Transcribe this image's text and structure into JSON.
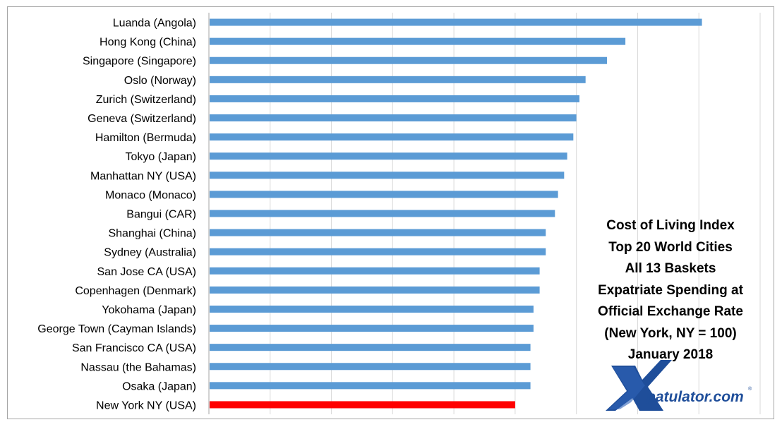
{
  "chart_data": {
    "type": "bar",
    "orientation": "horizontal",
    "categories": [
      "Luanda (Angola)",
      "Hong Kong (China)",
      "Singapore (Singapore)",
      "Oslo (Norway)",
      "Zurich (Switzerland)",
      "Geneva (Switzerland)",
      "Hamilton (Bermuda)",
      "Tokyo (Japan)",
      "Manhattan NY (USA)",
      "Monaco (Monaco)",
      "Bangui (CAR)",
      "Shanghai (China)",
      "Sydney (Australia)",
      "San Jose CA (USA)",
      "Copenhagen (Denmark)",
      "Yokohama (Japan)",
      "George Town (Cayman Islands)",
      "San Francisco CA (USA)",
      "Nassau (the Bahamas)",
      "Osaka (Japan)",
      "New York NY (USA)"
    ],
    "values": [
      161,
      136,
      130,
      123,
      121,
      120,
      119,
      117,
      116,
      114,
      113,
      110,
      110,
      108,
      108,
      106,
      106,
      105,
      105,
      105,
      100
    ],
    "highlight_category": "New York NY (USA)",
    "xlim": [
      0,
      180
    ],
    "grid": "vertical",
    "title_lines": [
      "Cost of Living Index",
      "Top 20 World Cities",
      "All 13 Baskets",
      "Expatriate Spending  at",
      "Official Exchange Rate",
      "(New York, NY = 100)",
      "January 2018"
    ],
    "colors": {
      "bar": "#5b9bd5",
      "highlight": "#ff0000",
      "grid": "#d9d9d9",
      "axis": "#a6a6a6"
    }
  },
  "logo": {
    "text": "patulator.com",
    "reg_mark": "®",
    "mark_color": "#1f4e9a"
  }
}
